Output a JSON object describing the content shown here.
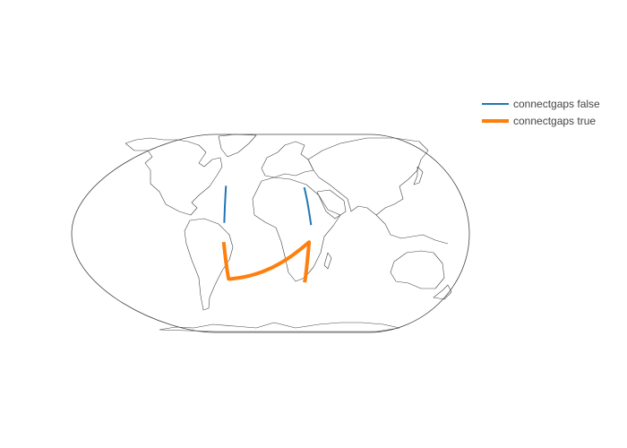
{
  "colors": {
    "series_false": "#1f77b4",
    "series_true": "#ff7f0e",
    "coastline": "#444444",
    "frame": "#444444",
    "background": "#ffffff"
  },
  "map": {
    "projection": "eckert4",
    "show_coastlines": true,
    "show_land_fill": false
  },
  "legend": {
    "placement": "right",
    "items": [
      {
        "label": "connectgaps false",
        "series": "series_false"
      },
      {
        "label": "connectgaps true",
        "series": "series_true"
      }
    ]
  },
  "chart_data": {
    "type": "geo-lines",
    "series": [
      {
        "name": "connectgaps false",
        "segments": [
          [
            [
              -40.4,
              43.6
            ],
            [
              -42.0,
              10.0
            ]
          ],
          [
            [
              30.6,
              42.2
            ],
            [
              36.8,
              8.0
            ]
          ]
        ]
      },
      {
        "name": "connectgaps true",
        "segments": [
          [
            [
              -42.5,
              -7.5
            ],
            [
              -38.0,
              -41.0
            ],
            [
              35.0,
              -7.5
            ],
            [
              31.0,
              -44.0
            ]
          ]
        ]
      }
    ]
  }
}
